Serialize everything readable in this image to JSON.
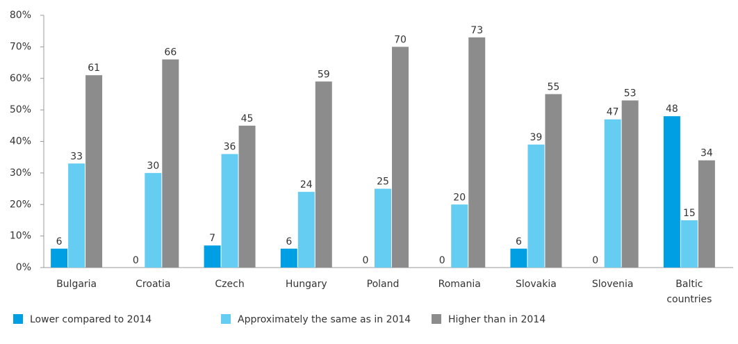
{
  "chart_data": {
    "type": "bar",
    "categories": [
      "Bulgaria",
      "Croatia",
      "Czech",
      "Hungary",
      "Poland",
      "Romania",
      "Slovakia",
      "Slovenia",
      "Baltic countries"
    ],
    "series": [
      {
        "name": "Lower compared to 2014",
        "color": "#009fe3",
        "values": [
          6,
          0,
          7,
          6,
          0,
          0,
          6,
          0,
          48
        ]
      },
      {
        "name": "Approximately the same as in 2014",
        "color": "#66cdf2",
        "values": [
          33,
          30,
          36,
          24,
          25,
          20,
          39,
          47,
          15
        ]
      },
      {
        "name": "Higher than in 2014",
        "color": "#8c8c8d",
        "values": [
          61,
          66,
          45,
          59,
          70,
          73,
          55,
          53,
          34
        ]
      }
    ],
    "ylim": [
      0,
      80
    ],
    "yticks": [
      {
        "value": 0,
        "label": "0%"
      },
      {
        "value": 10,
        "label": "10%"
      },
      {
        "value": 20,
        "label": "20%"
      },
      {
        "value": 30,
        "label": "30%"
      },
      {
        "value": 40,
        "label": "40%"
      },
      {
        "value": 50,
        "label": "50%"
      },
      {
        "value": 60,
        "label": "60%"
      },
      {
        "value": 70,
        "label": "70%"
      },
      {
        "value": 80,
        "label": "80%"
      }
    ],
    "legend": "bottom"
  }
}
